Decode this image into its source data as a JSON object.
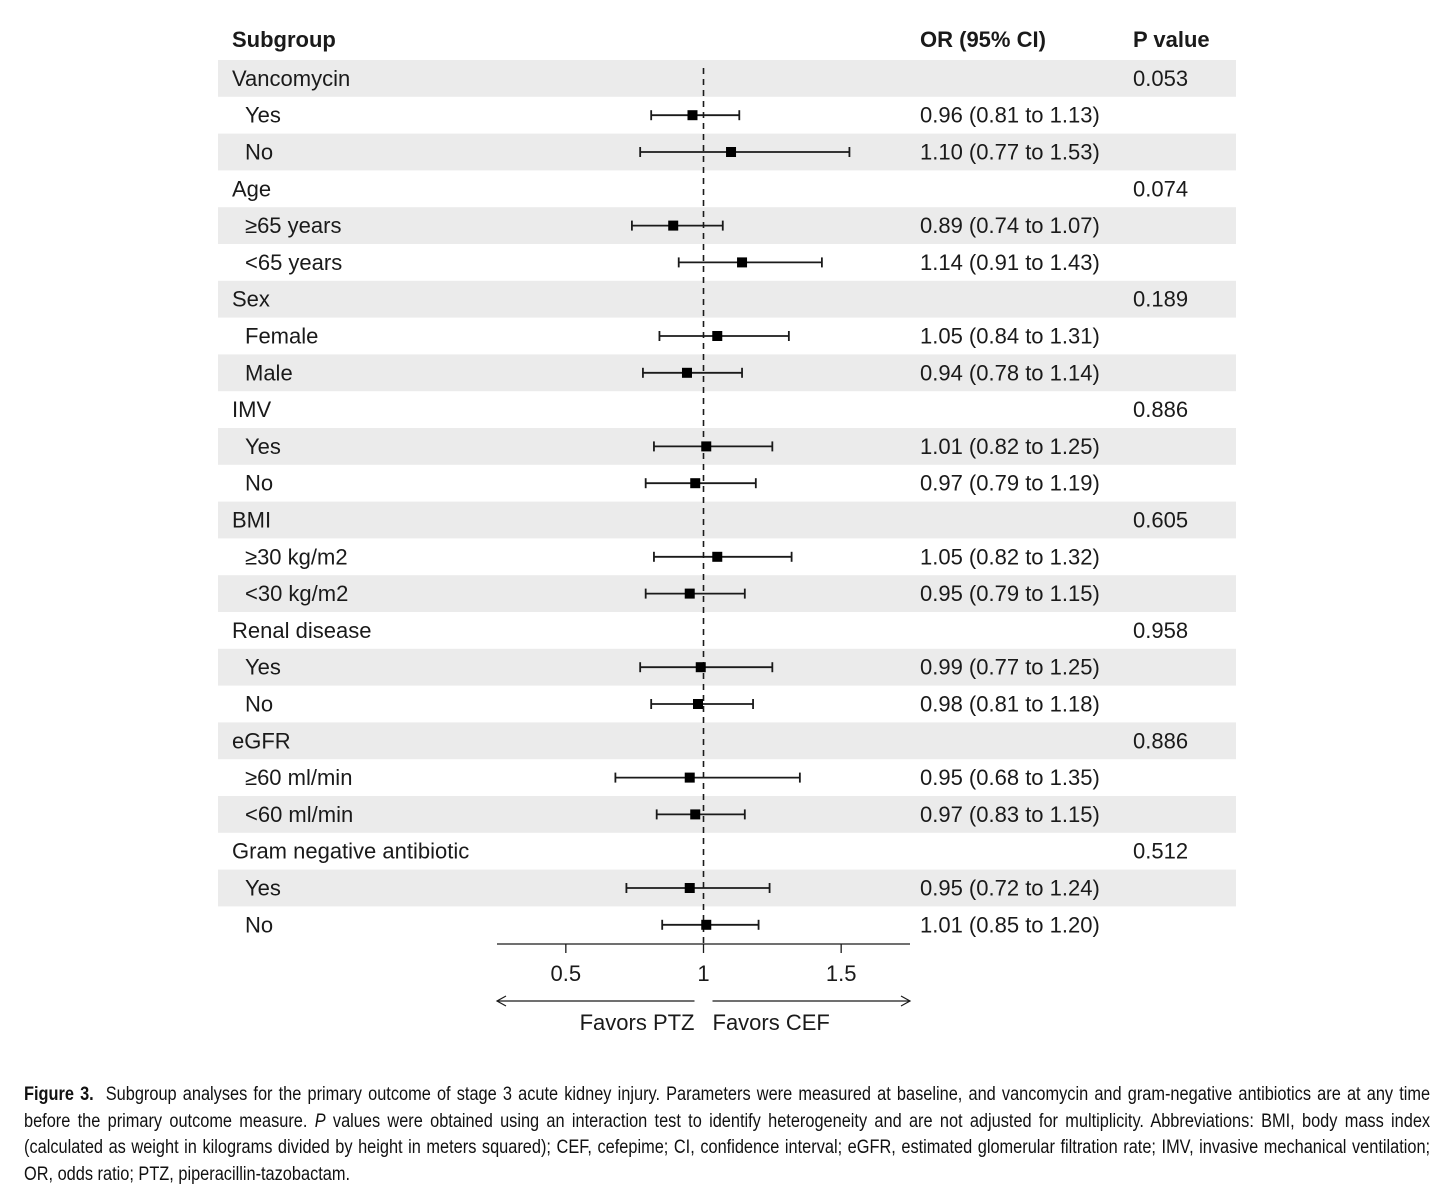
{
  "chart_data": {
    "type": "forest",
    "headers": {
      "subgroup": "Subgroup",
      "or": "OR (95% CI)",
      "p": "P value"
    },
    "reference_line": 1,
    "xlim": [
      0.25,
      1.75
    ],
    "xticks": [
      {
        "value": 0.5,
        "label": "0.5"
      },
      {
        "value": 1,
        "label": "1"
      },
      {
        "value": 1.5,
        "label": "1.5"
      }
    ],
    "direction_labels": {
      "left": "Favors PTZ",
      "right": "Favors CEF"
    },
    "rows": [
      {
        "label": "Vancomycin",
        "header": true,
        "p": "0.053"
      },
      {
        "label": "Yes",
        "or": 0.96,
        "lo": 0.81,
        "hi": 1.13,
        "text": "0.96 (0.81 to 1.13)"
      },
      {
        "label": "No",
        "or": 1.1,
        "lo": 0.77,
        "hi": 1.53,
        "text": "1.10 (0.77 to 1.53)"
      },
      {
        "label": "Age",
        "header": true,
        "p": "0.074"
      },
      {
        "label": "≥65 years",
        "or": 0.89,
        "lo": 0.74,
        "hi": 1.07,
        "text": "0.89 (0.74 to 1.07)"
      },
      {
        "label": "<65 years",
        "or": 1.14,
        "lo": 0.91,
        "hi": 1.43,
        "text": "1.14 (0.91 to 1.43)"
      },
      {
        "label": "Sex",
        "header": true,
        "p": "0.189"
      },
      {
        "label": "Female",
        "or": 1.05,
        "lo": 0.84,
        "hi": 1.31,
        "text": "1.05 (0.84 to 1.31)"
      },
      {
        "label": "Male",
        "or": 0.94,
        "lo": 0.78,
        "hi": 1.14,
        "text": "0.94 (0.78 to 1.14)"
      },
      {
        "label": "IMV",
        "header": true,
        "p": "0.886"
      },
      {
        "label": "Yes",
        "or": 1.01,
        "lo": 0.82,
        "hi": 1.25,
        "text": "1.01 (0.82 to 1.25)"
      },
      {
        "label": "No",
        "or": 0.97,
        "lo": 0.79,
        "hi": 1.19,
        "text": "0.97 (0.79 to 1.19)"
      },
      {
        "label": "BMI",
        "header": true,
        "p": "0.605"
      },
      {
        "label": "≥30 kg/m2",
        "or": 1.05,
        "lo": 0.82,
        "hi": 1.32,
        "text": "1.05 (0.82 to 1.32)"
      },
      {
        "label": "<30 kg/m2",
        "or": 0.95,
        "lo": 0.79,
        "hi": 1.15,
        "text": "0.95 (0.79 to 1.15)"
      },
      {
        "label": "Renal disease",
        "header": true,
        "p": "0.958"
      },
      {
        "label": "Yes",
        "or": 0.99,
        "lo": 0.77,
        "hi": 1.25,
        "text": "0.99 (0.77 to 1.25)"
      },
      {
        "label": "No",
        "or": 0.98,
        "lo": 0.81,
        "hi": 1.18,
        "text": "0.98 (0.81 to 1.18)"
      },
      {
        "label": "eGFR",
        "header": true,
        "p": "0.886"
      },
      {
        "label": "≥60 ml/min",
        "or": 0.95,
        "lo": 0.68,
        "hi": 1.35,
        "text": "0.95 (0.68 to 1.35)"
      },
      {
        "label": "<60 ml/min",
        "or": 0.97,
        "lo": 0.83,
        "hi": 1.15,
        "text": "0.97 (0.83 to 1.15)"
      },
      {
        "label": "Gram negative antibiotic",
        "header": true,
        "p": "0.512"
      },
      {
        "label": "Yes",
        "or": 0.95,
        "lo": 0.72,
        "hi": 1.24,
        "text": "0.95 (0.72 to 1.24)"
      },
      {
        "label": "No",
        "or": 1.01,
        "lo": 0.85,
        "hi": 1.2,
        "text": "1.01 (0.85 to 1.20)"
      }
    ]
  },
  "caption": {
    "label": "Figure 3.",
    "text": "Subgroup analyses for the primary outcome of stage 3 acute kidney injury. Parameters were measured at baseline, and vancomycin and gram-negative antibiotics are at any time before the primary outcome measure. ",
    "italic": "P",
    "text2": " values were obtained using an interaction test to identify heterogeneity and are not adjusted for multiplicity. Abbreviations: BMI, body mass index (calculated as weight in kilograms divided by height in meters squared); CEF, cefepime; CI, confidence interval; eGFR, estimated glomerular filtration rate; IMV, invasive mechanical ventilation; OR, odds ratio; PTZ, piperacillin-tazobactam."
  }
}
